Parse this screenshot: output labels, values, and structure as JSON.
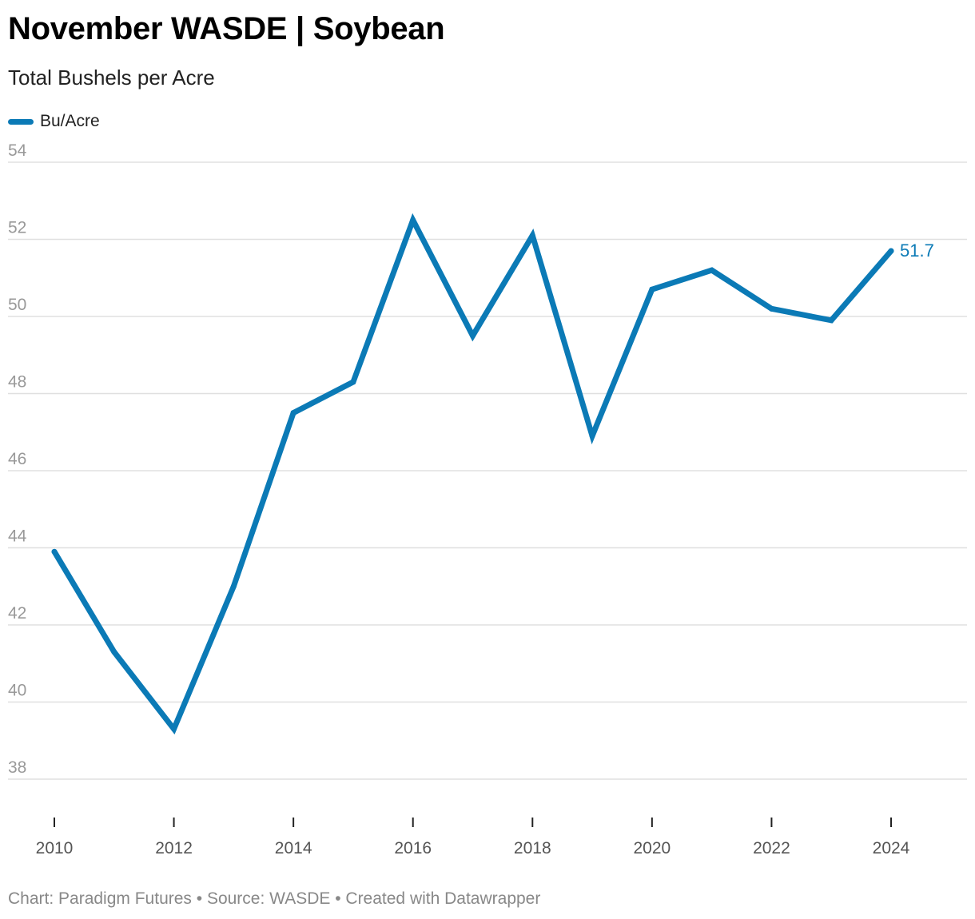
{
  "header": {
    "title": "November WASDE | Soybean",
    "subtitle": "Total Bushels per Acre"
  },
  "legend": {
    "label": "Bu/Acre"
  },
  "footer": {
    "text": "Chart: Paradigm Futures • Source: WASDE • Created with Datawrapper"
  },
  "colors": {
    "series": "#0b7ab6",
    "grid": "#e0e0e0",
    "ytick": "#999999",
    "xtick": "#555555"
  },
  "chart_data": {
    "type": "line",
    "title": "November WASDE | Soybean",
    "subtitle": "Total Bushels per Acre",
    "xlabel": "",
    "ylabel": "",
    "x": [
      2010,
      2011,
      2012,
      2013,
      2014,
      2015,
      2016,
      2017,
      2018,
      2019,
      2020,
      2021,
      2022,
      2023,
      2024
    ],
    "series": [
      {
        "name": "Bu/Acre",
        "values": [
          43.9,
          41.3,
          39.3,
          43.0,
          47.5,
          48.3,
          52.5,
          49.5,
          52.1,
          46.9,
          50.7,
          51.2,
          50.2,
          49.9,
          51.7
        ]
      }
    ],
    "ylim": [
      38,
      54
    ],
    "yticks": [
      38,
      40,
      42,
      44,
      46,
      48,
      50,
      52,
      54
    ],
    "xticks": [
      2010,
      2012,
      2014,
      2016,
      2018,
      2020,
      2022,
      2024
    ],
    "end_label": "51.7",
    "grid": true,
    "legend_position": "top-left"
  }
}
